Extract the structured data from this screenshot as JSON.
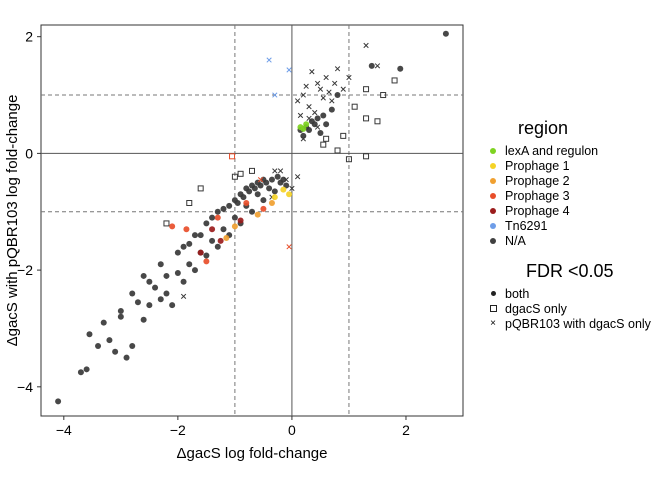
{
  "chart_data": {
    "type": "scatter",
    "xlabel": "ΔgacS log fold-change",
    "ylabel": "ΔgacS with pQBR103 log fold-change",
    "xlim": [
      -4.4,
      3.0
    ],
    "ylim": [
      -4.5,
      2.2
    ],
    "xticks": [
      -4,
      -2,
      0,
      2
    ],
    "yticks": [
      -4,
      -2,
      0,
      2
    ],
    "vlines_solid": [
      0
    ],
    "hlines_solid": [
      0
    ],
    "vlines_dashed": [
      -1,
      1
    ],
    "hlines_dashed": [
      -1,
      1
    ],
    "grid": false,
    "legend_region": {
      "title": "region",
      "placement": "right",
      "entries": [
        {
          "label": "lexA and regulon",
          "color": "#7ed321"
        },
        {
          "label": "Prophage 1",
          "color": "#f5d327"
        },
        {
          "label": "Prophage 2",
          "color": "#f0a030"
        },
        {
          "label": "Prophage 3",
          "color": "#e84e2a"
        },
        {
          "label": "Prophage 4",
          "color": "#9b1c1c"
        },
        {
          "label": "Tn6291",
          "color": "#6e9de8"
        },
        {
          "label": "N/A",
          "color": "#404040"
        }
      ]
    },
    "legend_fdr": {
      "title": "FDR <0.05",
      "placement": "right",
      "entries": [
        {
          "label": "both",
          "shape": "dot"
        },
        {
          "label": "dgacS only",
          "shape": "square"
        },
        {
          "label": "pQBR103 with dgacS only",
          "shape": "cross"
        }
      ]
    },
    "series": [
      {
        "name": "both",
        "points": [
          [
            -4.1,
            -4.25
          ],
          [
            -3.7,
            -3.75
          ],
          [
            -3.6,
            -3.7
          ],
          [
            -3.55,
            -3.1
          ],
          [
            -3.4,
            -3.3
          ],
          [
            -3.3,
            -2.9
          ],
          [
            -3.2,
            -3.2
          ],
          [
            -3.1,
            -3.4
          ],
          [
            -3.0,
            -2.8
          ],
          [
            -2.9,
            -3.5
          ],
          [
            -2.8,
            -3.3
          ],
          [
            -2.7,
            -2.55
          ],
          [
            -2.6,
            -2.85
          ],
          [
            -2.5,
            -2.6
          ],
          [
            -2.4,
            -2.3
          ],
          [
            -2.3,
            -2.5
          ],
          [
            -2.2,
            -2.4
          ],
          [
            -2.1,
            -2.6
          ],
          [
            -2.0,
            -2.05
          ],
          [
            -1.9,
            -2.2
          ],
          [
            -1.8,
            -1.9
          ],
          [
            -1.7,
            -2.0
          ],
          [
            -1.6,
            -1.7
          ],
          [
            -1.5,
            -1.75
          ],
          [
            -1.4,
            -1.5
          ],
          [
            -1.3,
            -1.6
          ],
          [
            -1.2,
            -1.3
          ],
          [
            -1.1,
            -1.4
          ],
          [
            -1.0,
            -1.1
          ],
          [
            -0.9,
            -1.2
          ],
          [
            -0.8,
            -0.9
          ],
          [
            -0.7,
            -1.0
          ],
          [
            -0.6,
            -0.7
          ],
          [
            -0.5,
            -0.8
          ],
          [
            -0.4,
            -0.6
          ],
          [
            -0.3,
            -0.65
          ],
          [
            -0.2,
            -0.5
          ],
          [
            -0.1,
            -0.55
          ],
          [
            -1.5,
            -1.2
          ],
          [
            -1.6,
            -1.4
          ],
          [
            -1.3,
            -1.0
          ],
          [
            -1.2,
            -0.95
          ],
          [
            -1.0,
            -0.8
          ],
          [
            -0.9,
            -0.7
          ],
          [
            -0.8,
            -0.6
          ],
          [
            -0.7,
            -0.55
          ],
          [
            -0.6,
            -0.5
          ],
          [
            -0.5,
            -0.45
          ],
          [
            -2.2,
            -2.1
          ],
          [
            -2.0,
            -1.7
          ],
          [
            -1.9,
            -1.6
          ],
          [
            -1.8,
            -1.55
          ],
          [
            -1.7,
            -1.4
          ],
          [
            -2.5,
            -2.2
          ],
          [
            -2.8,
            -2.4
          ],
          [
            -3.0,
            -2.7
          ],
          [
            -2.6,
            -2.1
          ],
          [
            -2.3,
            -1.9
          ],
          [
            -1.4,
            -1.1
          ],
          [
            -1.1,
            -0.9
          ],
          [
            -0.95,
            -0.85
          ],
          [
            -0.85,
            -0.75
          ],
          [
            -0.75,
            -0.65
          ],
          [
            -0.65,
            -0.6
          ],
          [
            -0.55,
            -0.55
          ],
          [
            -0.45,
            -0.5
          ],
          [
            -0.35,
            -0.45
          ],
          [
            -0.25,
            -0.4
          ],
          [
            -0.15,
            -0.45
          ],
          [
            0.2,
            0.3
          ],
          [
            0.3,
            0.4
          ],
          [
            0.4,
            0.5
          ],
          [
            0.5,
            0.35
          ],
          [
            0.35,
            0.55
          ],
          [
            0.45,
            0.6
          ],
          [
            0.25,
            0.45
          ],
          [
            0.6,
            0.5
          ],
          [
            0.15,
            0.4
          ],
          [
            0.55,
            0.65
          ],
          [
            1.4,
            1.5
          ],
          [
            1.9,
            1.45
          ],
          [
            2.7,
            2.05
          ],
          [
            0.8,
            1.0
          ],
          [
            0.7,
            0.75
          ]
        ]
      },
      {
        "name": "dgacS only",
        "points": [
          [
            -2.2,
            -1.2
          ],
          [
            -1.8,
            -0.85
          ],
          [
            -1.6,
            -0.6
          ],
          [
            -1.0,
            -0.4
          ],
          [
            -0.9,
            -0.35
          ],
          [
            -0.7,
            -0.3
          ],
          [
            0.6,
            0.25
          ],
          [
            0.9,
            0.3
          ],
          [
            1.3,
            0.6
          ],
          [
            1.5,
            0.55
          ],
          [
            1.1,
            0.8
          ],
          [
            1.3,
            1.1
          ],
          [
            1.6,
            1.0
          ],
          [
            0.8,
            0.05
          ],
          [
            1.3,
            -0.05
          ],
          [
            1.0,
            -0.1
          ],
          [
            1.8,
            1.25
          ],
          [
            0.55,
            0.15
          ]
        ]
      },
      {
        "name": "pQBR103 with dgacS only",
        "points": [
          [
            0.3,
            0.8
          ],
          [
            0.45,
            1.2
          ],
          [
            0.2,
            1.0
          ],
          [
            0.35,
            1.4
          ],
          [
            0.6,
            1.3
          ],
          [
            0.15,
            0.65
          ],
          [
            0.5,
            1.1
          ],
          [
            0.7,
            0.9
          ],
          [
            0.4,
            0.7
          ],
          [
            0.55,
            0.95
          ],
          [
            0.25,
            1.15
          ],
          [
            0.65,
            1.05
          ],
          [
            0.1,
            0.9
          ],
          [
            0.75,
            1.2
          ],
          [
            1.3,
            1.85
          ],
          [
            1.5,
            1.5
          ],
          [
            0.8,
            1.45
          ],
          [
            0.45,
            0.45
          ],
          [
            0.3,
            0.6
          ],
          [
            0.2,
            0.25
          ],
          [
            -0.1,
            -0.45
          ],
          [
            -0.2,
            -0.3
          ],
          [
            0.0,
            -0.6
          ],
          [
            0.1,
            -0.4
          ],
          [
            -0.3,
            -0.3
          ],
          [
            -0.35,
            -0.75
          ],
          [
            -1.9,
            -2.45
          ],
          [
            1.0,
            1.3
          ],
          [
            0.9,
            1.1
          ]
        ]
      }
    ],
    "highlight_points": [
      {
        "x": 0.15,
        "y": 0.45,
        "color": "#7ed321",
        "shape": "dot"
      },
      {
        "x": 0.25,
        "y": 0.5,
        "color": "#7ed321",
        "shape": "dot"
      },
      {
        "x": 0.2,
        "y": 0.42,
        "color": "#7ed321",
        "shape": "dot"
      },
      {
        "x": -0.3,
        "y": -0.75,
        "color": "#f5d327",
        "shape": "dot"
      },
      {
        "x": -0.05,
        "y": -0.7,
        "color": "#f5d327",
        "shape": "dot"
      },
      {
        "x": -0.15,
        "y": -0.62,
        "color": "#f5d327",
        "shape": "dot"
      },
      {
        "x": -0.35,
        "y": -0.85,
        "color": "#f0a030",
        "shape": "dot"
      },
      {
        "x": -1.15,
        "y": -1.45,
        "color": "#f0a030",
        "shape": "dot"
      },
      {
        "x": -1.0,
        "y": -1.25,
        "color": "#f0a030",
        "shape": "dot"
      },
      {
        "x": -0.6,
        "y": -1.05,
        "color": "#f0a030",
        "shape": "dot"
      },
      {
        "x": -1.3,
        "y": -1.1,
        "color": "#e84e2a",
        "shape": "dot"
      },
      {
        "x": -2.1,
        "y": -1.25,
        "color": "#e84e2a",
        "shape": "dot"
      },
      {
        "x": -1.5,
        "y": -1.85,
        "color": "#e84e2a",
        "shape": "dot"
      },
      {
        "x": -0.5,
        "y": -0.95,
        "color": "#e84e2a",
        "shape": "dot"
      },
      {
        "x": -1.85,
        "y": -1.3,
        "color": "#e84e2a",
        "shape": "dot"
      },
      {
        "x": -0.8,
        "y": -0.85,
        "color": "#e84e2a",
        "shape": "dot"
      },
      {
        "x": -0.05,
        "y": -1.6,
        "color": "#e84e2a",
        "shape": "cross"
      },
      {
        "x": -1.05,
        "y": -0.05,
        "color": "#e84e2a",
        "shape": "square"
      },
      {
        "x": -0.55,
        "y": -0.45,
        "color": "#e84e2a",
        "shape": "cross"
      },
      {
        "x": -1.4,
        "y": -1.3,
        "color": "#9b1c1c",
        "shape": "dot"
      },
      {
        "x": -1.6,
        "y": -1.7,
        "color": "#9b1c1c",
        "shape": "dot"
      },
      {
        "x": -1.25,
        "y": -1.5,
        "color": "#9b1c1c",
        "shape": "dot"
      },
      {
        "x": -0.9,
        "y": -1.15,
        "color": "#9b1c1c",
        "shape": "dot"
      },
      {
        "x": -0.4,
        "y": 1.6,
        "color": "#6e9de8",
        "shape": "cross"
      },
      {
        "x": -0.05,
        "y": 1.43,
        "color": "#6e9de8",
        "shape": "cross"
      },
      {
        "x": -0.3,
        "y": 1.0,
        "color": "#6e9de8",
        "shape": "cross"
      }
    ]
  }
}
